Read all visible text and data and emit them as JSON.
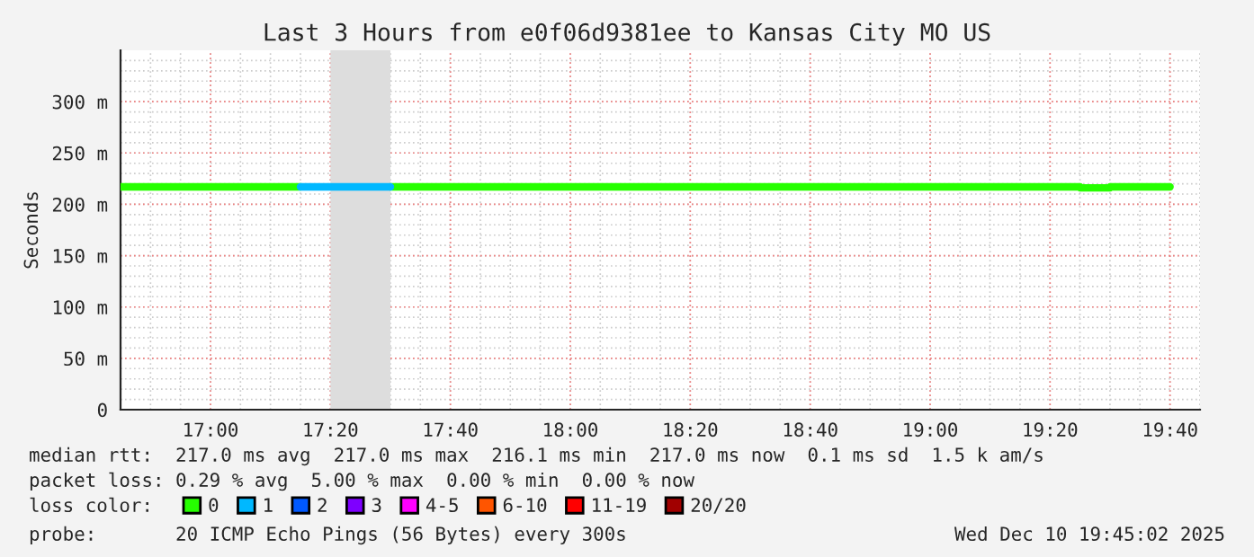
{
  "chart_data": {
    "type": "step",
    "title": "Last 3 Hours from e0f06d9381ee to Kansas City MO US",
    "ylabel": "Seconds",
    "xlim": [
      16.75,
      19.75
    ],
    "ylim": [
      0,
      350
    ],
    "xticks": [
      {
        "value": 17,
        "label": "17:00"
      },
      {
        "value": 17.3333,
        "label": "17:20"
      },
      {
        "value": 17.6667,
        "label": "17:40"
      },
      {
        "value": 18,
        "label": "18:00"
      },
      {
        "value": 18.3333,
        "label": "18:20"
      },
      {
        "value": 18.6667,
        "label": "18:40"
      },
      {
        "value": 19,
        "label": "19:00"
      },
      {
        "value": 19.3333,
        "label": "19:20"
      },
      {
        "value": 19.6667,
        "label": "19:40"
      }
    ],
    "yticks": [
      0,
      {
        "value": 50,
        "label": "50 m"
      },
      {
        "value": 100,
        "label": "100 m"
      },
      {
        "value": 150,
        "label": "150 m"
      },
      {
        "value": 200,
        "label": "200 m"
      },
      {
        "value": 250,
        "label": "250 m"
      },
      {
        "value": 300,
        "label": "300 m"
      }
    ],
    "grid": true,
    "legend": "bottom",
    "legend_title": "loss color:",
    "bands": [
      {
        "axis": "x",
        "from": 17.3333,
        "to": 17.5,
        "color": "#dddddd"
      }
    ],
    "series": [
      {
        "name": "0",
        "color": "#26ff00",
        "x": [
          16.75,
          16.8333,
          16.9167,
          17.0,
          17.0833,
          17.1667,
          17.25,
          17.3333,
          17.4167,
          17.5,
          17.5833,
          17.6667,
          17.75,
          17.8333,
          17.9167,
          18.0,
          18.0833,
          18.1667,
          18.25,
          18.3333,
          18.4167,
          18.5,
          18.5833,
          18.6667,
          18.75,
          18.8333,
          18.9167,
          19.0,
          19.0833,
          19.1667,
          19.25,
          19.3333,
          19.4167,
          19.5,
          19.5833,
          19.6667
        ],
        "values": [
          217,
          217,
          217,
          217,
          217,
          217,
          null,
          null,
          null,
          217,
          217,
          217,
          217,
          217,
          217,
          217,
          217,
          217,
          217,
          217,
          217,
          217,
          217,
          217,
          217,
          217,
          217,
          217,
          217,
          217,
          217,
          217,
          216,
          217,
          217,
          217
        ]
      },
      {
        "name": "1",
        "color": "#00b8ff",
        "x": [
          17.25,
          17.3333,
          17.4167,
          17.5
        ],
        "values": [
          217,
          217,
          217,
          217
        ]
      },
      {
        "name": "2",
        "color": "#0059ff"
      },
      {
        "name": "3",
        "color": "#7e00ff"
      },
      {
        "name": "4-5",
        "color": "#ff00ff"
      },
      {
        "name": "6-10",
        "color": "#ff5500"
      },
      {
        "name": "11-19",
        "color": "#ff0000"
      },
      {
        "name": "20/20",
        "color": "#a10000"
      }
    ],
    "annotations": [
      "median rtt:  217.0 ms avg  217.0 ms max  216.1 ms min  217.0 ms now  0.1 ms sd  1.5 k am/s",
      "packet loss: 0.29 % avg  5.00 % max  0.00 % min  0.00 % now",
      "probe:       20 ICMP Echo Pings (56 Bytes) every 300s",
      "Wed Dec 10 19:45:02 2025"
    ]
  }
}
